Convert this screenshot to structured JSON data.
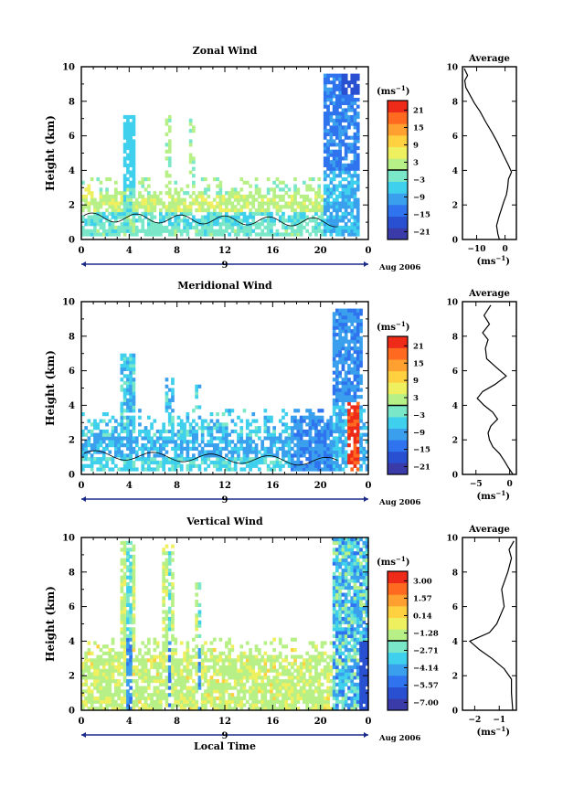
{
  "colors": [
    "#3a3aa8",
    "#2850d0",
    "#2f74ee",
    "#3aa0ee",
    "#3ed0ec",
    "#7ae8c8",
    "#b8f088",
    "#eef060",
    "#ffd040",
    "#ffa030",
    "#ff6a20",
    "#ee2a18"
  ],
  "common": {
    "ylabel": "Height (km)",
    "xticks": [
      "0",
      "4",
      "8",
      "12",
      "16",
      "20",
      "0"
    ],
    "yticks": [
      "0",
      "2",
      "4",
      "6",
      "8",
      "10"
    ],
    "date_marker": "9",
    "date_label": "Aug 2006",
    "unit": "(ms",
    "unit_exp": "−1",
    "avg_title": "Average",
    "xlabel": "Local Time"
  },
  "chart_data": [
    {
      "type": "heatmap",
      "title": "Zonal Wind",
      "xlabel": "",
      "ylabel": "Height (km)",
      "xlim": [
        0,
        24
      ],
      "ylim": [
        0,
        10
      ],
      "colorbar_ticks": [
        "21",
        "15",
        "9",
        "3",
        "−3",
        "−9",
        "−15",
        "−21"
      ],
      "average": {
        "title": "Average",
        "xticks": [
          "−10",
          "0"
        ],
        "xlim": [
          -15,
          4
        ],
        "points": [
          [
            -2,
            0
          ],
          [
            -2.5,
            0.3
          ],
          [
            -3,
            0.8
          ],
          [
            -2,
            1.4
          ],
          [
            -1.2,
            1.8
          ],
          [
            -0.4,
            2.2
          ],
          [
            0.5,
            2.6
          ],
          [
            0.9,
            3
          ],
          [
            1.2,
            3.5
          ],
          [
            2.3,
            3.9
          ],
          [
            1.2,
            4.3
          ],
          [
            -0.6,
            4.9
          ],
          [
            -2.6,
            5.6
          ],
          [
            -4.6,
            6.2
          ],
          [
            -6.8,
            6.8
          ],
          [
            -8.8,
            7.4
          ],
          [
            -10.8,
            7.9
          ],
          [
            -12.5,
            8.4
          ],
          [
            -13.8,
            8.8
          ],
          [
            -14.2,
            9.2
          ],
          [
            -13.2,
            9.5
          ],
          [
            -14.4,
            9.9
          ]
        ]
      }
    },
    {
      "type": "heatmap",
      "title": "Meridional Wind",
      "xlabel": "",
      "ylabel": "Height (km)",
      "xlim": [
        0,
        24
      ],
      "ylim": [
        0,
        10
      ],
      "colorbar_ticks": [
        "21",
        "15",
        "9",
        "3",
        "−3",
        "−9",
        "−15",
        "−21"
      ],
      "average": {
        "title": "Average",
        "xticks": [
          "−5",
          "0"
        ],
        "xlim": [
          -7,
          1
        ],
        "points": [
          [
            0.5,
            0
          ],
          [
            -0.2,
            0.4
          ],
          [
            -0.8,
            0.8
          ],
          [
            -1.5,
            1.2
          ],
          [
            -2.5,
            1.6
          ],
          [
            -3,
            2
          ],
          [
            -3.2,
            2.4
          ],
          [
            -2.8,
            2.8
          ],
          [
            -1.8,
            3.2
          ],
          [
            -2.5,
            3.6
          ],
          [
            -3.8,
            4
          ],
          [
            -4.8,
            4.4
          ],
          [
            -4,
            4.8
          ],
          [
            -2.2,
            5.2
          ],
          [
            -0.5,
            5.7
          ],
          [
            -2,
            6.2
          ],
          [
            -3.4,
            6.7
          ],
          [
            -3.6,
            7.3
          ],
          [
            -3.2,
            7.8
          ],
          [
            -4,
            8.2
          ],
          [
            -3,
            8.7
          ],
          [
            -3.8,
            9.2
          ],
          [
            -2.8,
            9.8
          ]
        ]
      }
    },
    {
      "type": "heatmap",
      "title": "Vertical Wind",
      "xlabel": "Local Time",
      "ylabel": "Height (km)",
      "xlim": [
        0,
        24
      ],
      "ylim": [
        0,
        10
      ],
      "colorbar_ticks": [
        "3.00",
        "1.57",
        "0.14",
        "−1.28",
        "−2.71",
        "−4.14",
        "−5.57",
        "−7.00"
      ],
      "average": {
        "title": "Average",
        "xticks": [
          "−2",
          "−1"
        ],
        "xlim": [
          -2.5,
          -0.3
        ],
        "points": [
          [
            -0.45,
            0
          ],
          [
            -0.5,
            1
          ],
          [
            -0.5,
            1.8
          ],
          [
            -0.8,
            2.4
          ],
          [
            -1.3,
            3
          ],
          [
            -1.8,
            3.5
          ],
          [
            -2.2,
            4
          ],
          [
            -1.4,
            4.5
          ],
          [
            -1.1,
            5
          ],
          [
            -0.8,
            6
          ],
          [
            -0.9,
            7
          ],
          [
            -0.65,
            8
          ],
          [
            -0.5,
            8.8
          ],
          [
            -0.6,
            9.3
          ],
          [
            -0.4,
            9.8
          ]
        ]
      }
    }
  ]
}
